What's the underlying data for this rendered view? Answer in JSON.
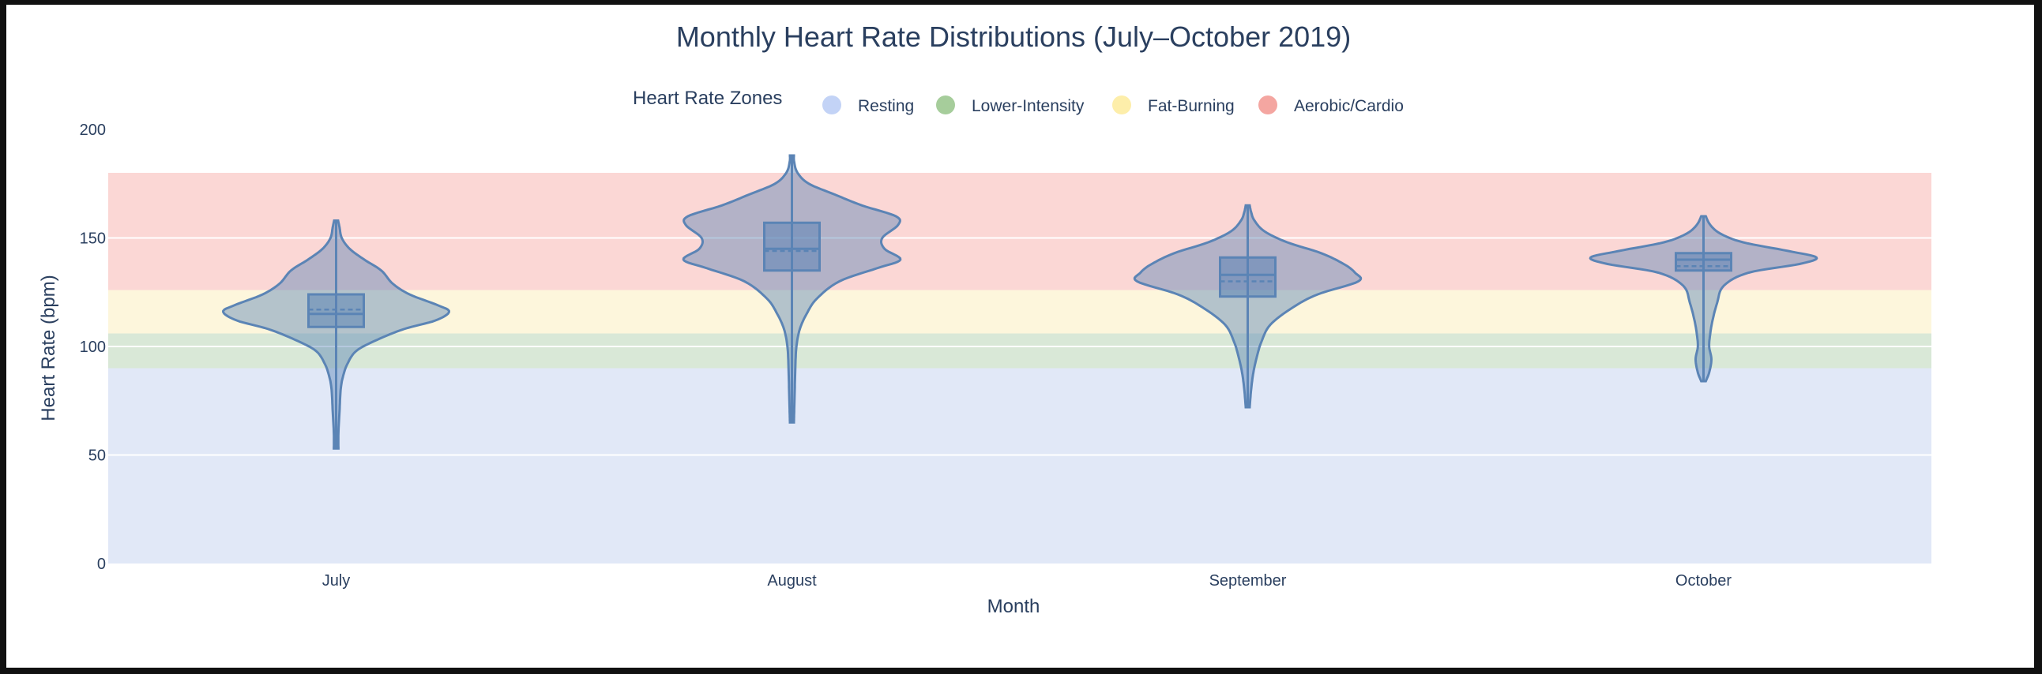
{
  "chart_data": {
    "type": "violin",
    "title": "Monthly Heart Rate Distributions (July–October 2019)",
    "xlabel": "Month",
    "ylabel": "Heart Rate (bpm)",
    "ylim": [
      0,
      200
    ],
    "yticks": [
      0,
      50,
      100,
      150,
      200
    ],
    "grid": true,
    "legend": {
      "title": "Heart Rate Zones",
      "placement": "top-center",
      "entries": [
        {
          "name": "Resting",
          "color": "#c3d3f6"
        },
        {
          "name": "Lower-Intensity",
          "color": "#a6cd9b"
        },
        {
          "name": "Fat-Burning",
          "color": "#fdeeaa"
        },
        {
          "name": "Aerobic/Cardio",
          "color": "#f4a6a1"
        }
      ]
    },
    "zones": [
      {
        "name": "Resting",
        "from": 0,
        "to": 90,
        "color": "#e1e8f7"
      },
      {
        "name": "Lower-Intensity",
        "from": 90,
        "to": 106,
        "color": "#d9e8d7"
      },
      {
        "name": "Fat-Burning",
        "from": 106,
        "to": 126,
        "color": "#fdf6dc"
      },
      {
        "name": "Aerobic/Cardio",
        "from": 126,
        "to": 180,
        "color": "#fbd7d5"
      }
    ],
    "categories": [
      "July",
      "August",
      "September",
      "October"
    ],
    "violin_color": "#5b84b5",
    "violins": [
      {
        "month": "July",
        "min": 53,
        "q1": 109,
        "median": 115,
        "mean": 117,
        "q3": 124,
        "max": 158,
        "density": [
          [
            53,
            0.02
          ],
          [
            60,
            0.02
          ],
          [
            70,
            0.03
          ],
          [
            80,
            0.04
          ],
          [
            86,
            0.06
          ],
          [
            92,
            0.1
          ],
          [
            98,
            0.18
          ],
          [
            103,
            0.36
          ],
          [
            108,
            0.6
          ],
          [
            112,
            0.88
          ],
          [
            116,
            1.0
          ],
          [
            119,
            0.9
          ],
          [
            124,
            0.65
          ],
          [
            129,
            0.5
          ],
          [
            135,
            0.4
          ],
          [
            140,
            0.25
          ],
          [
            145,
            0.12
          ],
          [
            150,
            0.05
          ],
          [
            155,
            0.03
          ],
          [
            158,
            0.015
          ]
        ]
      },
      {
        "month": "August",
        "min": 65,
        "q1": 135,
        "median": 145,
        "mean": 144,
        "q3": 157,
        "max": 188,
        "density": [
          [
            65,
            0.015
          ],
          [
            70,
            0.02
          ],
          [
            80,
            0.025
          ],
          [
            90,
            0.03
          ],
          [
            100,
            0.04
          ],
          [
            108,
            0.07
          ],
          [
            115,
            0.13
          ],
          [
            122,
            0.22
          ],
          [
            130,
            0.42
          ],
          [
            136,
            0.75
          ],
          [
            140,
            0.96
          ],
          [
            145,
            0.82
          ],
          [
            150,
            0.8
          ],
          [
            156,
            0.94
          ],
          [
            160,
            0.92
          ],
          [
            165,
            0.62
          ],
          [
            170,
            0.38
          ],
          [
            175,
            0.15
          ],
          [
            180,
            0.05
          ],
          [
            185,
            0.02
          ],
          [
            188,
            0.01
          ]
        ]
      },
      {
        "month": "September",
        "min": 72,
        "q1": 123,
        "median": 133,
        "mean": 130,
        "q3": 141,
        "max": 165,
        "density": [
          [
            72,
            0.015
          ],
          [
            80,
            0.03
          ],
          [
            88,
            0.05
          ],
          [
            95,
            0.08
          ],
          [
            102,
            0.12
          ],
          [
            110,
            0.2
          ],
          [
            118,
            0.4
          ],
          [
            124,
            0.62
          ],
          [
            130,
            0.98
          ],
          [
            134,
            0.95
          ],
          [
            138,
            0.85
          ],
          [
            143,
            0.65
          ],
          [
            148,
            0.35
          ],
          [
            153,
            0.15
          ],
          [
            158,
            0.06
          ],
          [
            162,
            0.03
          ],
          [
            165,
            0.015
          ]
        ]
      },
      {
        "month": "October",
        "min": 84,
        "q1": 135,
        "median": 140,
        "mean": 137,
        "q3": 143,
        "max": 160,
        "density": [
          [
            84,
            0.02
          ],
          [
            88,
            0.05
          ],
          [
            94,
            0.07
          ],
          [
            100,
            0.05
          ],
          [
            106,
            0.06
          ],
          [
            112,
            0.08
          ],
          [
            120,
            0.12
          ],
          [
            128,
            0.18
          ],
          [
            134,
            0.4
          ],
          [
            138,
            0.85
          ],
          [
            141,
            1.0
          ],
          [
            144,
            0.75
          ],
          [
            148,
            0.35
          ],
          [
            152,
            0.15
          ],
          [
            156,
            0.06
          ],
          [
            160,
            0.02
          ]
        ]
      }
    ]
  }
}
